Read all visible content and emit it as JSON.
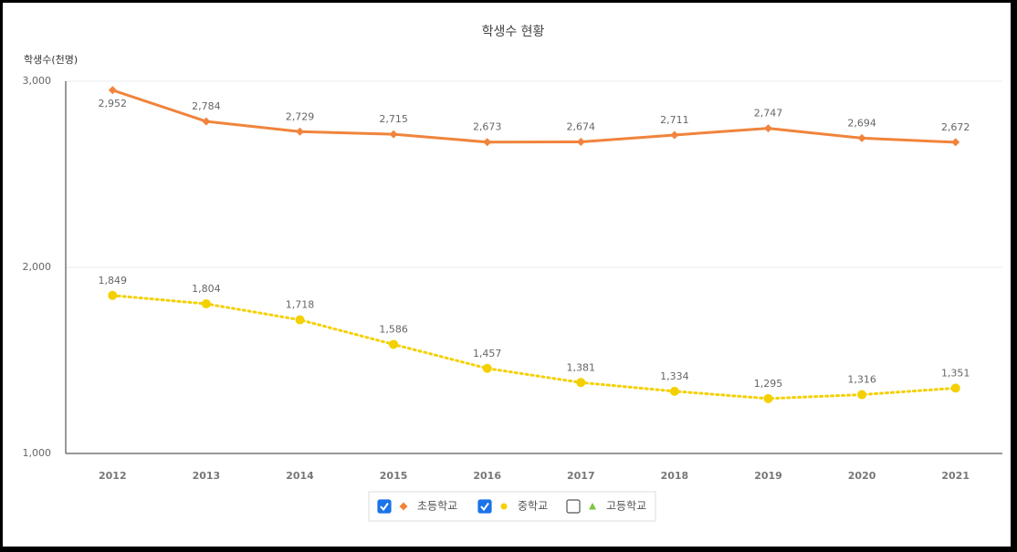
{
  "chart_data": {
    "type": "line",
    "title": "학생수 현황",
    "y_label": "학생수(천명)",
    "categories": [
      "2012",
      "2013",
      "2014",
      "2015",
      "2016",
      "2017",
      "2018",
      "2019",
      "2020",
      "2021"
    ],
    "series": [
      {
        "name": "초등학교",
        "color": "#f0843c",
        "marker": "diamond",
        "line_style": "solid",
        "checked": true,
        "values": [
          2952,
          2784,
          2729,
          2715,
          2673,
          2674,
          2711,
          2747,
          2694,
          2672
        ],
        "value_labels": [
          "2,952",
          "2,784",
          "2,729",
          "2,715",
          "2,673",
          "2,674",
          "2,711",
          "2,747",
          "2,694",
          "2,672"
        ]
      },
      {
        "name": "중학교",
        "color": "#f5d000",
        "marker": "circle",
        "line_style": "dotted",
        "checked": true,
        "values": [
          1849,
          1804,
          1718,
          1586,
          1457,
          1381,
          1334,
          1295,
          1316,
          1351
        ],
        "value_labels": [
          "1,849",
          "1,804",
          "1,718",
          "1,586",
          "1,457",
          "1,381",
          "1,334",
          "1,295",
          "1,316",
          "1,351"
        ]
      },
      {
        "name": "고등학교",
        "color": "#7cc540",
        "marker": "triangle",
        "line_style": "solid",
        "checked": false
      }
    ],
    "ylim": [
      1000,
      3000
    ],
    "yticks": [
      {
        "value": 1000,
        "label": "1,000"
      },
      {
        "value": 2000,
        "label": "2,000"
      },
      {
        "value": 3000,
        "label": "3,000"
      }
    ],
    "grid": true,
    "legend": "bottom"
  }
}
